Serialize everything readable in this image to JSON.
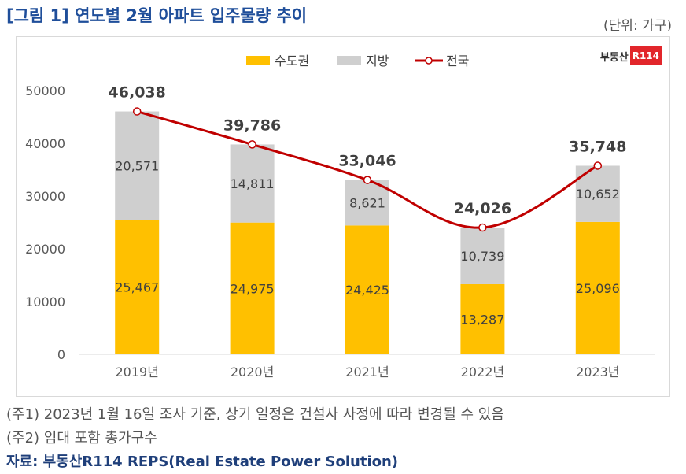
{
  "title": "[그림 1] 연도별 2월 아파트 입주물량 추이",
  "unit": "(단위: 가구)",
  "logo": {
    "text": "부동산",
    "badge": "R114"
  },
  "notes": [
    "(주1) 2023년 1월 16일 조사 기준, 상기 일정은 건설사 사정에 따라 변경될 수 있음",
    "(주2) 임대 포함 총가구수"
  ],
  "source": "자료: 부동산R114 REPS(Real Estate Power Solution)",
  "colors": {
    "capital": "#ffc000",
    "regional": "#cfcfcf",
    "national": "#c00000"
  },
  "chart_data": {
    "type": "bar",
    "stacked": true,
    "categories": [
      "2019년",
      "2020년",
      "2021년",
      "2022년",
      "2023년"
    ],
    "series": [
      {
        "name": "수도권",
        "type": "bar",
        "values": [
          25467,
          24975,
          24425,
          13287,
          25096
        ],
        "labels": [
          "25,467",
          "24,975",
          "24,425",
          "13,287",
          "25,096"
        ]
      },
      {
        "name": "지방",
        "type": "bar",
        "values": [
          20571,
          14811,
          8621,
          10739,
          10652
        ],
        "labels": [
          "20,571",
          "14,811",
          "8,621",
          "10,739",
          "10,652"
        ]
      },
      {
        "name": "전국",
        "type": "line",
        "values": [
          46038,
          39786,
          33046,
          24026,
          35748
        ],
        "labels": [
          "46,038",
          "39,786",
          "33,046",
          "24,026",
          "35,748"
        ]
      }
    ],
    "ylim": [
      0,
      50000
    ],
    "yticks": [
      "0",
      "10000",
      "20000",
      "30000",
      "40000",
      "50000"
    ],
    "legend_position": "top-center",
    "grid": false
  }
}
